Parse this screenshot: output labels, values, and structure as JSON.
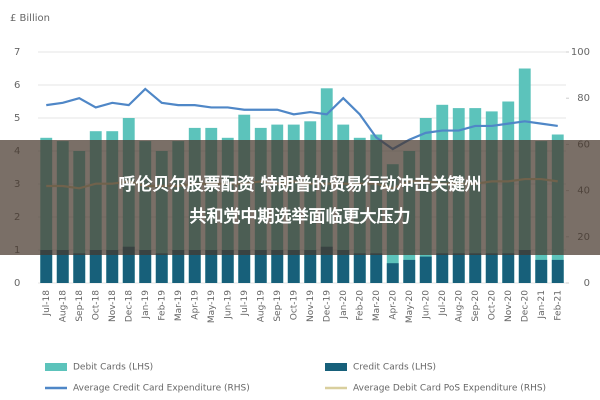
{
  "chart_data": {
    "type": "bar",
    "y_label": "£ Billion",
    "categories": [
      "Jul-18",
      "Aug-18",
      "Sep-18",
      "Oct-18",
      "Nov-18",
      "Dec-18",
      "Jan-19",
      "Feb-19",
      "Mar-19",
      "Apr-19",
      "May-19",
      "Jun-19",
      "Jul-19",
      "Aug-19",
      "Sep-19",
      "Oct-19",
      "Nov-19",
      "Dec-19",
      "Jan-20",
      "Feb-20",
      "Mar-20",
      "Apr-20",
      "May-20",
      "Jun-20",
      "Jul-20",
      "Aug-20",
      "Sep-20",
      "Oct-20",
      "Nov-20",
      "Dec-20",
      "Jan-21",
      "Feb-21"
    ],
    "series": [
      {
        "name": "Debit Cards (LHS)",
        "type": "bar",
        "color": "#5cc3bb",
        "values": [
          4.4,
          4.3,
          4.0,
          4.6,
          4.6,
          5.0,
          4.3,
          4.0,
          4.3,
          4.7,
          4.7,
          4.4,
          5.1,
          4.7,
          4.8,
          4.8,
          4.9,
          5.9,
          4.8,
          4.4,
          4.5,
          3.6,
          4.0,
          5.0,
          5.4,
          5.3,
          5.3,
          5.2,
          5.5,
          6.5,
          4.3,
          4.5
        ]
      },
      {
        "name": "Credit Cards (LHS)",
        "type": "bar",
        "color": "#17607a",
        "values": [
          1.0,
          1.0,
          0.9,
          1.0,
          1.0,
          1.1,
          1.0,
          0.9,
          1.0,
          1.0,
          1.0,
          1.0,
          1.0,
          1.0,
          1.0,
          1.0,
          1.0,
          1.1,
          1.0,
          0.9,
          0.9,
          0.6,
          0.7,
          0.8,
          0.9,
          0.9,
          0.9,
          0.9,
          0.9,
          1.0,
          0.7,
          0.7
        ]
      },
      {
        "name": "Average Credit Card Expenditure (RHS)",
        "type": "line",
        "axis": "y2",
        "color": "#4f87c7",
        "values": [
          77,
          78,
          80,
          76,
          78,
          77,
          84,
          78,
          77,
          77,
          76,
          76,
          75,
          75,
          75,
          73,
          74,
          73,
          80,
          73,
          63,
          58,
          62,
          65,
          66,
          66,
          68,
          68,
          69,
          70,
          69,
          68
        ]
      },
      {
        "name": "Average Debit Card PoS Expenditure (RHS)",
        "type": "line",
        "axis": "y2",
        "color": "#d9cf9e",
        "values": [
          42,
          42,
          41,
          43,
          43,
          44,
          42,
          42,
          42,
          43,
          43,
          43,
          43,
          44,
          43,
          44,
          43,
          43,
          43,
          43,
          43,
          41,
          44,
          44,
          43,
          43,
          43,
          44,
          44,
          45,
          45,
          44
        ]
      }
    ],
    "ylim": [
      0,
      7
    ],
    "yticks": [
      0,
      1,
      2,
      3,
      4,
      5,
      6,
      7
    ],
    "y2lim": [
      0,
      100
    ],
    "y2ticks": [
      0,
      20,
      40,
      60,
      80,
      100
    ],
    "grid": true
  },
  "overlay": {
    "lines": [
      "呼伦贝尔股票配资 特朗普的贸易行动冲击关键州",
      "共和党中期选举面临更大压力"
    ]
  }
}
